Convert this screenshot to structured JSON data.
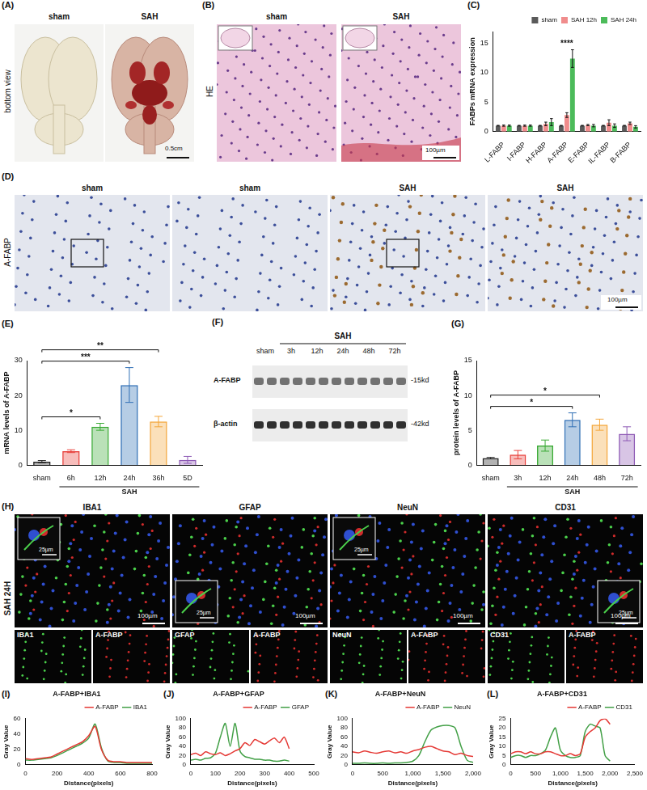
{
  "figure": {
    "A": {
      "panel": "(A)",
      "columns": [
        "sham",
        "SAH"
      ],
      "row_label": "bottom view",
      "scale_bar": "0.5cm"
    },
    "B": {
      "panel": "(B)",
      "columns": [
        "sham",
        "SAH"
      ],
      "row_label": "HE",
      "scale_bar": "100µm"
    },
    "D": {
      "panel": "(D)",
      "row_label": "A-FABP",
      "columns": [
        "sham",
        "sham",
        "SAH",
        "SAH"
      ],
      "scale_bar": "100µm"
    },
    "F": {
      "panel": "(F)",
      "group": "SAH",
      "lanes": [
        "sham",
        "3h",
        "12h",
        "24h",
        "48h",
        "72h"
      ],
      "rows": [
        {
          "label": "A-FABP",
          "size": "-15kd"
        },
        {
          "label": "β-actin",
          "size": "-42kd"
        }
      ]
    },
    "H": {
      "panel": "(H)",
      "row_label": "SAH 24H",
      "columns": [
        {
          "title": "IBA1",
          "scale_bar": "100µm",
          "inset_scale_bar": "25µm",
          "channels": [
            "IBA1",
            "A-FABP"
          ]
        },
        {
          "title": "GFAP",
          "scale_bar": "100µm",
          "inset_scale_bar": "25µm",
          "channels": [
            "GFAP",
            "A-FABP"
          ]
        },
        {
          "title": "NeuN",
          "scale_bar": "100µm",
          "inset_scale_bar": "25µm",
          "channels": [
            "NeuN",
            "A-FABP"
          ]
        },
        {
          "title": "CD31",
          "scale_bar": "100µm",
          "inset_scale_bar": "25µm",
          "channels": [
            "CD31",
            "A-FABP"
          ]
        }
      ]
    }
  },
  "chart_data": [
    {
      "panel": "(C)",
      "type": "bar",
      "categories": [
        "L-FABP",
        "I-FABP",
        "H-FABP",
        "A-FABP",
        "E-FABP",
        "IL-FABP",
        "B-FABP"
      ],
      "series": [
        {
          "name": "sham",
          "color": "#5a5a5a",
          "values": [
            1,
            1,
            1,
            1,
            1,
            1,
            1
          ],
          "errors": [
            0.05,
            0.05,
            0.05,
            0.05,
            0.05,
            0.05,
            0.05
          ]
        },
        {
          "name": "SAH 12h",
          "color": "#f08c8c",
          "values": [
            1,
            1,
            1.3,
            2.8,
            1.1,
            1.5,
            1.4
          ],
          "errors": [
            0.1,
            0.1,
            0.3,
            0.4,
            0.1,
            0.5,
            0.2
          ]
        },
        {
          "name": "SAH 24h",
          "color": "#4cbb5a",
          "values": [
            1,
            1,
            1.6,
            12.4,
            1,
            1,
            0.8
          ],
          "errors": [
            0.1,
            0.1,
            0.6,
            1.5,
            0.2,
            0.3,
            0.2
          ]
        }
      ],
      "ylabel": "FABPs mRNA expression",
      "ylim": [
        0,
        17
      ],
      "yticks": [
        0,
        5,
        10,
        15
      ],
      "grid": false,
      "legend": "top right",
      "annotations": [
        {
          "category": "A-FABP",
          "label": "****"
        }
      ]
    },
    {
      "panel": "(E)",
      "type": "bar",
      "categories": [
        "sham",
        "6h",
        "12h",
        "24h",
        "36h",
        "5D"
      ],
      "values": [
        1,
        4,
        11,
        23,
        12.5,
        1.5
      ],
      "errors": [
        0.3,
        0.4,
        1,
        5,
        1.5,
        1
      ],
      "colors": [
        "#222222",
        "#e8413c",
        "#3aaa35",
        "#2f6fb5",
        "#f4a63a",
        "#8e5ab5"
      ],
      "ylabel": "mRNA levels of A-FABP",
      "ylim": [
        0,
        30
      ],
      "yticks": [
        0,
        10,
        20,
        30
      ],
      "grid": false,
      "group_label": {
        "text": "SAH",
        "from": "6h",
        "to": "5D"
      },
      "significance": [
        {
          "from": "sham",
          "to": "12h",
          "label": "*"
        },
        {
          "from": "sham",
          "to": "24h",
          "label": "***"
        },
        {
          "from": "sham",
          "to": "36h",
          "label": "**"
        }
      ]
    },
    {
      "panel": "(G)",
      "type": "bar",
      "categories": [
        "sham",
        "3h",
        "12h",
        "24h",
        "48h",
        "72h"
      ],
      "values": [
        1,
        1.5,
        2.8,
        6.5,
        5.8,
        4.5
      ],
      "errors": [
        0.1,
        0.6,
        0.8,
        1,
        0.8,
        1
      ],
      "colors": [
        "#222222",
        "#e8413c",
        "#3aaa35",
        "#2f6fb5",
        "#f4a63a",
        "#8e5ab5"
      ],
      "ylabel": "protein levels of A-FABP",
      "ylim": [
        0,
        15
      ],
      "yticks": [
        0,
        5,
        10,
        15
      ],
      "grid": false,
      "group_label": {
        "text": "SAH",
        "from": "3h",
        "to": "72h"
      },
      "significance": [
        {
          "from": "sham",
          "to": "24h",
          "label": "*"
        },
        {
          "from": "sham",
          "to": "48h",
          "label": "*"
        }
      ]
    },
    {
      "panel": "(I)",
      "type": "line",
      "title": "A-FABP+IBA1",
      "x": [
        0,
        40,
        80,
        120,
        160,
        200,
        240,
        280,
        320,
        360,
        400,
        440,
        480,
        520,
        560,
        600,
        640,
        680,
        720,
        760,
        800
      ],
      "series": [
        {
          "name": "A-FABP",
          "color": "#e53935",
          "values": [
            8,
            7,
            8,
            9,
            10,
            14,
            18,
            22,
            26,
            30,
            38,
            50,
            20,
            6,
            4,
            4,
            3,
            3,
            3,
            3,
            3
          ]
        },
        {
          "name": "IBA1",
          "color": "#43a047",
          "values": [
            6,
            6,
            7,
            8,
            9,
            12,
            16,
            20,
            24,
            28,
            35,
            53,
            22,
            5,
            3,
            3,
            2,
            2,
            2,
            2,
            2
          ]
        }
      ],
      "xlabel": "Distance(pixels)",
      "ylabel": "Gray Value",
      "xlim": [
        0,
        800
      ],
      "xticks": [
        0,
        200,
        400,
        600,
        800
      ],
      "ylim": [
        0,
        60
      ],
      "yticks": [
        0,
        20,
        40,
        60
      ],
      "grid": false,
      "legend": "top right"
    },
    {
      "panel": "(J)",
      "type": "line",
      "title": "A-FABP+GFAP",
      "x": [
        0,
        20,
        40,
        60,
        80,
        100,
        120,
        140,
        160,
        180,
        200,
        220,
        240,
        260,
        280,
        300,
        320,
        340,
        360,
        380,
        400
      ],
      "series": [
        {
          "name": "A-FABP",
          "color": "#e53935",
          "values": [
            22,
            25,
            20,
            28,
            24,
            22,
            26,
            20,
            24,
            30,
            35,
            48,
            42,
            55,
            50,
            45,
            52,
            58,
            48,
            60,
            35
          ]
        },
        {
          "name": "GFAP",
          "color": "#43a047",
          "values": [
            10,
            12,
            10,
            14,
            15,
            25,
            60,
            90,
            40,
            90,
            30,
            18,
            15,
            12,
            12,
            10,
            10,
            8,
            8,
            10,
            8
          ]
        }
      ],
      "xlabel": "Distance(pixels)",
      "ylabel": "Gray Value",
      "xlim": [
        0,
        500
      ],
      "xticks": [
        0,
        100,
        200,
        300,
        400,
        500
      ],
      "ylim": [
        0,
        100
      ],
      "yticks": [
        0,
        20,
        40,
        60,
        80,
        100
      ],
      "grid": false,
      "legend": "top right"
    },
    {
      "panel": "(K)",
      "type": "line",
      "title": "A-FABP+NeuN",
      "x": [
        0,
        100,
        200,
        300,
        400,
        500,
        600,
        700,
        800,
        900,
        1000,
        1100,
        1200,
        1300,
        1400,
        1500,
        1600,
        1700,
        1800,
        1900,
        2000
      ],
      "series": [
        {
          "name": "A-FABP",
          "color": "#e53935",
          "values": [
            28,
            26,
            30,
            27,
            25,
            28,
            30,
            26,
            28,
            25,
            30,
            33,
            38,
            40,
            35,
            30,
            28,
            22,
            25,
            20,
            18
          ]
        },
        {
          "name": "NeuN",
          "color": "#43a047",
          "values": [
            3,
            3,
            4,
            3,
            3,
            4,
            3,
            4,
            4,
            5,
            8,
            20,
            50,
            75,
            82,
            85,
            85,
            80,
            40,
            10,
            5
          ]
        }
      ],
      "xlabel": "Distance(pixels)",
      "ylabel": "Gray Value",
      "xlim": [
        0,
        2000
      ],
      "xticks": [
        0,
        500,
        1000,
        1500,
        2000
      ],
      "ylim": [
        0,
        100
      ],
      "yticks": [
        0,
        20,
        40,
        60,
        80,
        100
      ],
      "grid": false,
      "legend": "top right"
    },
    {
      "panel": "(L)",
      "type": "line",
      "title": "A-FABP+CD31",
      "x": [
        0,
        100,
        200,
        300,
        400,
        500,
        600,
        700,
        800,
        900,
        1000,
        1100,
        1200,
        1300,
        1400,
        1500,
        1600,
        1700,
        1800,
        1900,
        2000
      ],
      "series": [
        {
          "name": "A-FABP",
          "color": "#e53935",
          "values": [
            6,
            7,
            7,
            6,
            7,
            6,
            6,
            7,
            7,
            6,
            5,
            5,
            6,
            5,
            6,
            15,
            18,
            20,
            24,
            25,
            22
          ]
        },
        {
          "name": "CD31",
          "color": "#43a047",
          "values": [
            4,
            5,
            5,
            4,
            5,
            5,
            6,
            8,
            15,
            20,
            8,
            5,
            4,
            4,
            5,
            18,
            22,
            21,
            20,
            5,
            2
          ]
        }
      ],
      "xlabel": "Distance(pixels)",
      "ylabel": "Gray Value",
      "xlim": [
        0,
        2500
      ],
      "xticks": [
        0,
        500,
        1000,
        1500,
        2000,
        2500
      ],
      "ylim": [
        0,
        25
      ],
      "yticks": [
        0,
        5,
        10,
        15,
        20,
        25
      ],
      "grid": false,
      "legend": "top right"
    }
  ]
}
